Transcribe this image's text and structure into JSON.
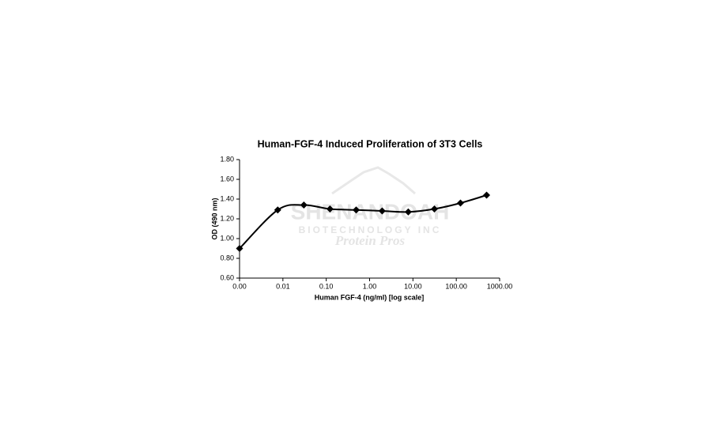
{
  "chart_data": {
    "type": "line",
    "title": "Human-FGF-4 Induced Proliferation of 3T3 Cells",
    "xlabel": "Human FGF-4 (ng/ml) [log scale]",
    "ylabel": "OD (490 nm)",
    "watermark": [
      "SHENANDOAH",
      "BIOTECHNOLOGY INC",
      "Protein Pros"
    ],
    "xscale": "log",
    "grid": false,
    "smooth": true,
    "xlim": [
      0.001,
      1000
    ],
    "ylim": [
      0.6,
      1.8
    ],
    "xticks": [
      {
        "value": 0.001,
        "label": "0.00"
      },
      {
        "value": 0.01,
        "label": "0.01"
      },
      {
        "value": 0.1,
        "label": "0.10"
      },
      {
        "value": 1,
        "label": "1.00"
      },
      {
        "value": 10,
        "label": "10.00"
      },
      {
        "value": 100,
        "label": "100.00"
      },
      {
        "value": 1000,
        "label": "1000.00"
      }
    ],
    "yticks": [
      {
        "value": 0.6,
        "label": "0.60"
      },
      {
        "value": 0.8,
        "label": "0.80"
      },
      {
        "value": 1.0,
        "label": "1.00"
      },
      {
        "value": 1.2,
        "label": "1.20"
      },
      {
        "value": 1.4,
        "label": "1.40"
      },
      {
        "value": 1.6,
        "label": "1.60"
      },
      {
        "value": 1.8,
        "label": "1.80"
      }
    ],
    "series": [
      {
        "color": "#000000",
        "x": [
          0.001,
          0.0076,
          0.0305,
          0.122,
          0.49,
          1.95,
          7.8,
          31.25,
          125,
          500
        ],
        "values": [
          0.9,
          1.29,
          1.34,
          1.3,
          1.29,
          1.28,
          1.27,
          1.3,
          1.36,
          1.44
        ]
      }
    ]
  }
}
